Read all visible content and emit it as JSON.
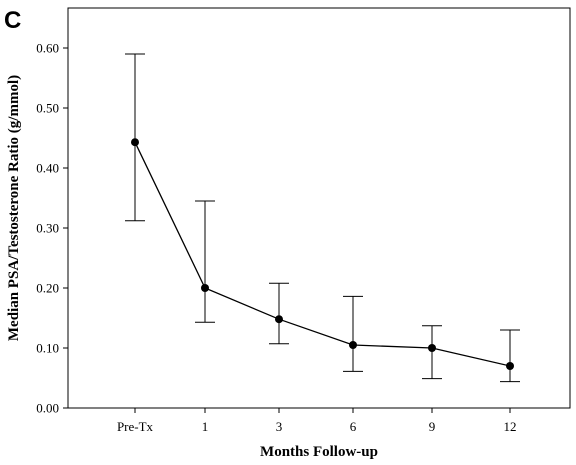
{
  "panel_label": "C",
  "chart_data": {
    "type": "line",
    "xlabel": "Months Follow-up",
    "ylabel": "Median PSA/Testosterone Ratio (g/mmol)",
    "categories": [
      "Pre-Tx",
      "1",
      "3",
      "6",
      "9",
      "12"
    ],
    "series": [
      {
        "values": [
          0.443,
          0.2,
          0.148,
          0.105,
          0.1,
          0.07
        ],
        "error_low": [
          0.312,
          0.143,
          0.107,
          0.061,
          0.049,
          0.044
        ],
        "error_high": [
          0.59,
          0.345,
          0.208,
          0.186,
          0.137,
          0.13
        ]
      }
    ],
    "ylim": [
      0,
      0.6
    ],
    "yticks": [
      "0.00",
      "0.10",
      "0.20",
      "0.30",
      "0.40",
      "0.50",
      "0.60"
    ],
    "grid": false,
    "legend": "none"
  }
}
